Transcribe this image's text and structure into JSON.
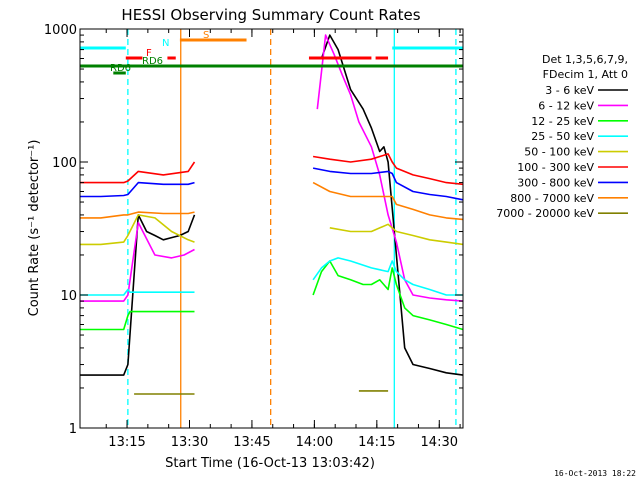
{
  "chart_data": {
    "type": "line",
    "title": "HESSI Observing Summary Count Rates",
    "xlabel": "Start Time (16-Oct-13 13:03:42)",
    "ylabel": "Count Rate (s⁻¹ detector⁻¹)",
    "yscale": "log",
    "ylim": [
      1,
      1000
    ],
    "xlim_minutes_after_13_03_42": [
      0,
      92
    ],
    "x_ticks": [
      "13:15",
      "13:30",
      "13:45",
      "14:00",
      "14:15",
      "14:30"
    ],
    "x_tick_minutes": [
      11.3,
      26.3,
      41.3,
      56.3,
      71.3,
      86.3
    ],
    "y_ticks": [
      "1",
      "10",
      "100",
      "1000"
    ],
    "y_tick_values": [
      1,
      10,
      100,
      1000
    ],
    "grid": false,
    "legend_position": "right",
    "legend_header": [
      "Det 1,3,5,6,7,9,",
      "FDecim 1, Att 0"
    ],
    "footer_date": "16-Oct-2013 18:22",
    "series": [
      {
        "name": "3 - 6 keV",
        "color": "#000000",
        "x": [
          0,
          10.5,
          11.5,
          14,
          16,
          18,
          20,
          22,
          24,
          26,
          27.5,
          28.5,
          31,
          45,
          55,
          58,
          60,
          62,
          65,
          68,
          70,
          72,
          73,
          74,
          75,
          78,
          80,
          84,
          88,
          92
        ],
        "y": [
          2.5,
          2.5,
          3,
          40,
          30,
          28,
          26,
          27,
          28,
          30,
          40,
          null,
          null,
          null,
          null,
          600,
          900,
          700,
          350,
          250,
          180,
          120,
          130,
          100,
          45,
          4,
          3,
          2.8,
          2.6,
          2.5
        ]
      },
      {
        "name": "6 - 12 keV",
        "color": "#ff00ff",
        "x": [
          0,
          10.5,
          11.5,
          14,
          18,
          22,
          25,
          27.5,
          28.5,
          55,
          57,
          59,
          61,
          63,
          65,
          67,
          70,
          72,
          74,
          76,
          78,
          80,
          84,
          88,
          92
        ],
        "y": [
          9,
          9,
          10,
          35,
          20,
          19,
          20,
          22,
          null,
          null,
          250,
          900,
          650,
          450,
          320,
          200,
          130,
          80,
          40,
          25,
          13,
          10,
          9.5,
          9.2,
          9
        ]
      },
      {
        "name": "12 - 25 keV",
        "color": "#00ff00",
        "x": [
          0,
          10.5,
          11.5,
          12,
          27.5,
          28.5,
          55,
          56,
          58,
          60,
          62,
          65,
          68,
          70,
          72,
          74,
          75,
          76,
          78,
          80,
          84,
          88,
          92
        ],
        "y": [
          5.5,
          5.5,
          7,
          7.5,
          7.5,
          null,
          null,
          10,
          15,
          18,
          14,
          13,
          12,
          12,
          13,
          11,
          16,
          12,
          8,
          7,
          6.5,
          6,
          5.5
        ]
      },
      {
        "name": "25 - 50 keV",
        "color": "#00ffff",
        "x": [
          0,
          10.5,
          11.5,
          12,
          27.5,
          28.5,
          55,
          56,
          58,
          60,
          62,
          65,
          70,
          74,
          75,
          76,
          78,
          80,
          84,
          88,
          92
        ],
        "y": [
          10,
          10,
          11,
          10.5,
          10.5,
          null,
          null,
          13,
          16,
          18,
          19,
          18,
          16,
          15,
          18,
          15,
          13,
          12,
          11,
          10,
          10
        ]
      },
      {
        "name": "50 - 100 keV",
        "color": "#cccc00",
        "x": [
          0,
          5,
          10.5,
          11.5,
          14,
          18,
          22,
          26,
          27.5,
          28.5,
          55,
          60,
          65,
          70,
          74,
          76,
          80,
          84,
          88,
          92
        ],
        "y": [
          24,
          24,
          25,
          28,
          40,
          38,
          30,
          26,
          25,
          null,
          null,
          32,
          30,
          30,
          34,
          30,
          28,
          26,
          25,
          24
        ]
      },
      {
        "name": "100 - 300 keV",
        "color": "#ff0000",
        "x": [
          0,
          5,
          10.5,
          11.5,
          14,
          20,
          26,
          27.5,
          28.5,
          55,
          56,
          60,
          65,
          70,
          74,
          75,
          76,
          80,
          84,
          88,
          92
        ],
        "y": [
          70,
          70,
          70,
          72,
          85,
          80,
          85,
          100,
          null,
          null,
          110,
          105,
          100,
          105,
          115,
          100,
          90,
          80,
          75,
          70,
          68
        ]
      },
      {
        "name": "300 - 800 keV",
        "color": "#0000ff",
        "x": [
          0,
          5,
          10.5,
          11.5,
          14,
          20,
          26,
          27.5,
          28.5,
          55,
          56,
          60,
          65,
          70,
          74,
          75,
          76,
          80,
          84,
          88,
          92
        ],
        "y": [
          55,
          55,
          56,
          57,
          70,
          68,
          68,
          70,
          null,
          null,
          90,
          85,
          82,
          82,
          85,
          82,
          70,
          60,
          57,
          55,
          52
        ]
      },
      {
        "name": "800 - 7000 keV",
        "color": "#ff8000",
        "x": [
          0,
          5,
          10.5,
          11.5,
          14,
          20,
          26,
          27.5,
          28.5,
          55,
          56,
          60,
          65,
          70,
          74,
          75,
          76,
          80,
          84,
          88,
          92
        ],
        "y": [
          38,
          38,
          40,
          40,
          42,
          41,
          41,
          42,
          null,
          null,
          70,
          60,
          55,
          55,
          55,
          55,
          48,
          44,
          40,
          38,
          37
        ]
      },
      {
        "name": "7000 - 20000 keV",
        "color": "#808000",
        "x": [
          0,
          10.5,
          11.5,
          13,
          20,
          26,
          27.5,
          28.5,
          55,
          64,
          67,
          70,
          72,
          74,
          76,
          92
        ],
        "y": [
          null,
          null,
          null,
          1.8,
          1.8,
          1.8,
          1.8,
          null,
          null,
          null,
          1.9,
          1.9,
          1.9,
          1.9,
          null,
          null
        ]
      }
    ],
    "flags": [
      {
        "label": "N",
        "color": "#00ffff",
        "segments": [
          [
            0,
            11
          ],
          [
            75,
            92
          ]
        ]
      },
      {
        "label": "F",
        "color": "#ff0000",
        "segments": [
          [
            11,
            15
          ],
          [
            21,
            23
          ],
          [
            55,
            70
          ],
          [
            71,
            74
          ]
        ]
      },
      {
        "label": "S",
        "color": "#ff8000",
        "segments": [
          [
            24,
            40
          ]
        ]
      },
      {
        "label": "RD6",
        "color": "#008000",
        "segments": [
          [
            0,
            92
          ]
        ]
      },
      {
        "label": "RD6",
        "color": "#008000",
        "segments": [
          [
            8,
            11
          ]
        ]
      }
    ],
    "vertical_markers": [
      {
        "minute": 11.5,
        "color": "#00ffff",
        "style": "dashed"
      },
      {
        "minute": 24.2,
        "color": "#ff8000",
        "style": "solid"
      },
      {
        "minute": 45.8,
        "color": "#ff8000",
        "style": "dashed"
      },
      {
        "minute": 75.5,
        "color": "#00ffff",
        "style": "solid"
      },
      {
        "minute": 90.3,
        "color": "#00ffff",
        "style": "dashed"
      }
    ]
  }
}
